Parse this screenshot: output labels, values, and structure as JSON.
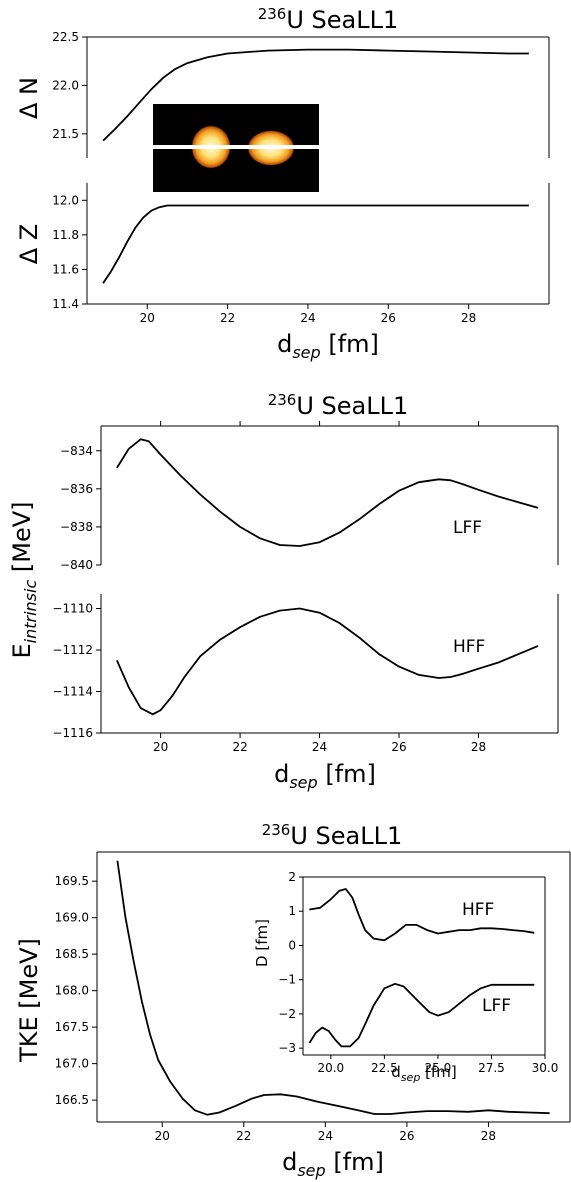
{
  "figure": {
    "nucleus_mass": "236",
    "nucleus_name": "U SeaLL1",
    "xlabel_main": "d",
    "xlabel_sub": "sep",
    "xlabel_unit": " [fm]"
  },
  "chart_data": [
    {
      "id": "deltaN",
      "type": "line",
      "title": "236U SeaLL1",
      "ylabel": "Δ N",
      "xlim": [
        18.5,
        30.0
      ],
      "ylim": [
        21.25,
        22.5
      ],
      "xticks": [
        "20",
        "22",
        "24",
        "26",
        "28"
      ],
      "yticks": [
        "21.5",
        "22.0",
        "22.5"
      ],
      "series": [
        {
          "x": [
            18.9,
            19.2,
            19.5,
            19.8,
            20.1,
            20.4,
            20.7,
            21.0,
            21.5,
            22.0,
            23.0,
            24.0,
            25.0,
            26.0,
            27.0,
            28.0,
            29.0,
            29.5
          ],
          "y": [
            21.43,
            21.55,
            21.68,
            21.82,
            21.96,
            22.08,
            22.17,
            22.23,
            22.29,
            22.33,
            22.36,
            22.37,
            22.37,
            22.36,
            22.35,
            22.34,
            22.33,
            22.33
          ]
        }
      ]
    },
    {
      "id": "deltaZ",
      "type": "line",
      "ylabel": "Δ Z",
      "xlim": [
        18.5,
        30.0
      ],
      "ylim": [
        11.4,
        12.1
      ],
      "xticks": [
        "20",
        "22",
        "24",
        "26",
        "28"
      ],
      "yticks": [
        "11.4",
        "11.6",
        "11.8",
        "12.0"
      ],
      "series": [
        {
          "x": [
            18.9,
            19.1,
            19.3,
            19.5,
            19.7,
            19.9,
            20.1,
            20.3,
            20.5,
            20.8,
            21.2,
            22.0,
            24.0,
            26.0,
            28.0,
            29.5
          ],
          "y": [
            11.52,
            11.59,
            11.67,
            11.76,
            11.84,
            11.9,
            11.94,
            11.96,
            11.97,
            11.97,
            11.97,
            11.97,
            11.97,
            11.97,
            11.97,
            11.97
          ]
        }
      ]
    },
    {
      "id": "intrinsic_lff",
      "type": "line",
      "title": "236U SeaLL1",
      "ylabel": "E intrinsic [MeV]",
      "xlim": [
        18.5,
        30.0
      ],
      "ylim": [
        -840.0,
        -832.7
      ],
      "xticks": [
        "20",
        "22",
        "24",
        "26",
        "28"
      ],
      "yticks": [
        "-834",
        "-836",
        "-838",
        "-840"
      ],
      "annotation": "LFF",
      "series": [
        {
          "x": [
            18.9,
            19.2,
            19.5,
            19.7,
            20.0,
            20.5,
            21.0,
            21.5,
            22.0,
            22.5,
            23.0,
            23.5,
            24.0,
            24.5,
            25.0,
            25.5,
            26.0,
            26.5,
            27.0,
            27.3,
            27.6,
            28.0,
            28.5,
            29.0,
            29.5
          ],
          "y": [
            -834.9,
            -833.9,
            -833.4,
            -833.5,
            -834.2,
            -835.3,
            -836.3,
            -837.2,
            -838.0,
            -838.6,
            -838.95,
            -839.0,
            -838.8,
            -838.3,
            -837.6,
            -836.8,
            -836.1,
            -835.65,
            -835.5,
            -835.55,
            -835.75,
            -836.05,
            -836.4,
            -836.7,
            -837.0
          ]
        }
      ]
    },
    {
      "id": "intrinsic_hff",
      "type": "line",
      "ylabel": "",
      "xlim": [
        18.5,
        30.0
      ],
      "ylim": [
        -1116.0,
        -1109.3
      ],
      "xticks": [
        "20",
        "22",
        "24",
        "26",
        "28"
      ],
      "yticks": [
        "-1110",
        "-1112",
        "-1114",
        "-1116"
      ],
      "annotation": "HFF",
      "series": [
        {
          "x": [
            18.9,
            19.2,
            19.5,
            19.8,
            20.0,
            20.3,
            20.6,
            21.0,
            21.5,
            22.0,
            22.5,
            23.0,
            23.5,
            24.0,
            24.5,
            25.0,
            25.5,
            26.0,
            26.5,
            27.0,
            27.3,
            27.6,
            28.0,
            28.5,
            29.0,
            29.5
          ],
          "y": [
            -1112.5,
            -1113.8,
            -1114.8,
            -1115.1,
            -1114.9,
            -1114.2,
            -1113.3,
            -1112.3,
            -1111.5,
            -1110.9,
            -1110.4,
            -1110.1,
            -1110.0,
            -1110.2,
            -1110.7,
            -1111.4,
            -1112.2,
            -1112.8,
            -1113.2,
            -1113.35,
            -1113.3,
            -1113.15,
            -1112.9,
            -1112.6,
            -1112.2,
            -1111.8
          ]
        }
      ]
    },
    {
      "id": "tke",
      "type": "line",
      "title": "236U SeaLL1",
      "ylabel": "TKE [MeV]",
      "xlim": [
        18.4,
        30.0
      ],
      "ylim": [
        166.2,
        169.9
      ],
      "xticks": [
        "20",
        "22",
        "24",
        "26",
        "28"
      ],
      "yticks": [
        "169.5",
        "169.0",
        "168.5",
        "168.0",
        "167.5",
        "167.0",
        "166.5"
      ],
      "series": [
        {
          "x": [
            18.9,
            19.1,
            19.3,
            19.5,
            19.7,
            19.9,
            20.2,
            20.5,
            20.8,
            21.1,
            21.4,
            21.8,
            22.2,
            22.5,
            22.9,
            23.3,
            23.8,
            24.3,
            24.8,
            25.2,
            25.6,
            26.0,
            26.5,
            27.0,
            27.5,
            28.0,
            28.5,
            29.0,
            29.5
          ],
          "y": [
            169.78,
            169.0,
            168.4,
            167.85,
            167.4,
            167.05,
            166.75,
            166.52,
            166.36,
            166.3,
            166.33,
            166.42,
            166.52,
            166.57,
            166.58,
            166.55,
            166.48,
            166.42,
            166.36,
            166.31,
            166.31,
            166.33,
            166.35,
            166.35,
            166.34,
            166.36,
            166.34,
            166.33,
            166.32
          ]
        }
      ]
    },
    {
      "id": "tke_inset",
      "type": "line",
      "xlabel": "d sep [fm]",
      "ylabel": "D [fm]",
      "xlim": [
        18.7,
        30.0
      ],
      "ylim": [
        -3.2,
        2.0
      ],
      "xticks": [
        "20.0",
        "22.5",
        "25.0",
        "27.5",
        "30.0"
      ],
      "yticks": [
        "2",
        "1",
        "0",
        "-1",
        "-2",
        "-3"
      ],
      "series": [
        {
          "name": "HFF",
          "x": [
            19.0,
            19.5,
            20.0,
            20.4,
            20.7,
            21.0,
            21.3,
            21.6,
            22.0,
            22.5,
            23.0,
            23.5,
            24.0,
            24.5,
            25.0,
            25.5,
            26.0,
            26.5,
            27.0,
            27.5,
            28.0,
            28.5,
            29.0,
            29.5
          ],
          "y": [
            1.05,
            1.1,
            1.35,
            1.6,
            1.65,
            1.4,
            0.9,
            0.45,
            0.2,
            0.15,
            0.35,
            0.6,
            0.6,
            0.45,
            0.35,
            0.4,
            0.45,
            0.45,
            0.5,
            0.5,
            0.48,
            0.45,
            0.42,
            0.37
          ]
        },
        {
          "name": "LFF",
          "x": [
            19.0,
            19.3,
            19.6,
            19.9,
            20.2,
            20.5,
            20.9,
            21.3,
            21.6,
            22.0,
            22.5,
            23.0,
            23.4,
            23.8,
            24.2,
            24.6,
            25.0,
            25.5,
            26.0,
            26.5,
            27.0,
            27.5,
            28.0,
            28.5,
            29.0,
            29.5
          ],
          "y": [
            -2.85,
            -2.55,
            -2.4,
            -2.5,
            -2.75,
            -2.95,
            -2.95,
            -2.7,
            -2.3,
            -1.75,
            -1.25,
            -1.12,
            -1.2,
            -1.45,
            -1.7,
            -1.95,
            -2.05,
            -1.95,
            -1.7,
            -1.45,
            -1.25,
            -1.15,
            -1.15,
            -1.15,
            -1.15,
            -1.15
          ]
        }
      ]
    }
  ]
}
